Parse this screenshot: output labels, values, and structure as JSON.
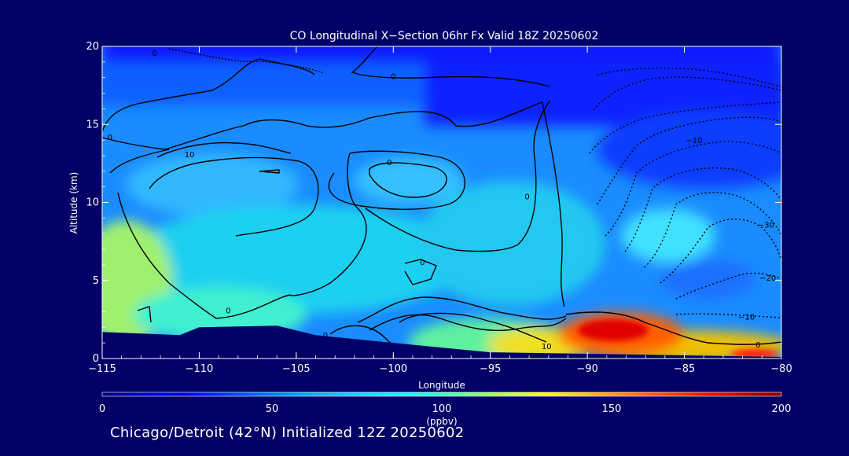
{
  "chart_data": {
    "type": "heatmap",
    "title": "CO Longitudinal X−Section 06hr  Fx Valid 18Z 20250602",
    "xlabel": "Longitude",
    "ylabel": "Altitude (km)",
    "xlim": [
      -115,
      -80
    ],
    "ylim": [
      0,
      20
    ],
    "x_ticks": [
      -115,
      -110,
      -105,
      -100,
      -95,
      -90,
      -85,
      -80
    ],
    "x_tick_labels": [
      "−115",
      "−110",
      "−105",
      "−100",
      "−95",
      "−90",
      "−85",
      "−80"
    ],
    "y_ticks": [
      0,
      5,
      10,
      15,
      20
    ],
    "y_tick_labels": [
      "0",
      "5",
      "10",
      "15",
      "20"
    ],
    "colorbar": {
      "min": 0,
      "max": 200,
      "ticks": [
        0,
        50,
        100,
        150,
        200
      ],
      "tick_labels": [
        "0",
        "50",
        "100",
        "150",
        "200"
      ],
      "units": "(ppbv)",
      "colors": [
        "#000080",
        "#0000ff",
        "#00aaff",
        "#00ffff",
        "#80ff80",
        "#ffff00",
        "#ff8000",
        "#ff0000",
        "#800000"
      ]
    },
    "background_field": {
      "description_levels_ppbv": "blue aloft (~30-40), cyan mid-levels (~65-80), yellow/red near surface east",
      "max_region": {
        "lon": [
          -91,
          -86
        ],
        "alt_km": [
          1,
          2.5
        ],
        "value_ppbv": 190
      }
    },
    "contour_labels": [
      {
        "text": "0",
        "lon": -112.3,
        "alt": 19.6
      },
      {
        "text": "0",
        "lon": -100.0,
        "alt": 18.1
      },
      {
        "text": "0",
        "lon": -114.6,
        "alt": 14.2
      },
      {
        "text": "10",
        "lon": -110.5,
        "alt": 13.1
      },
      {
        "text": "0",
        "lon": -100.2,
        "alt": 12.6
      },
      {
        "text": "0",
        "lon": -93.1,
        "alt": 10.4
      },
      {
        "text": "−10",
        "lon": -84.5,
        "alt": 14.0
      },
      {
        "text": "−30",
        "lon": -80.8,
        "alt": 8.6
      },
      {
        "text": "−20",
        "lon": -80.7,
        "alt": 5.2
      },
      {
        "text": "0",
        "lon": -98.5,
        "alt": 6.2
      },
      {
        "text": "0",
        "lon": -108.5,
        "alt": 3.1
      },
      {
        "text": "0",
        "lon": -103.5,
        "alt": 1.5
      },
      {
        "text": "10",
        "lon": -92.1,
        "alt": 0.8
      },
      {
        "text": "−10",
        "lon": -81.8,
        "alt": 2.7
      },
      {
        "text": "0",
        "lon": -81.2,
        "alt": 0.9
      }
    ],
    "terrain_alt_km": [
      {
        "lon": -115,
        "alt": 1.7
      },
      {
        "lon": -111,
        "alt": 1.5
      },
      {
        "lon": -110,
        "alt": 2.0
      },
      {
        "lon": -106,
        "alt": 2.1
      },
      {
        "lon": -104,
        "alt": 1.5
      },
      {
        "lon": -100,
        "alt": 1.0
      },
      {
        "lon": -95,
        "alt": 0.4
      },
      {
        "lon": -90,
        "alt": 0.3
      },
      {
        "lon": -85,
        "alt": 0.2
      },
      {
        "lon": -80,
        "alt": 0.1
      }
    ]
  },
  "footer_text": "Chicago/Detroit (42°N) Initialized 12Z 20250602"
}
